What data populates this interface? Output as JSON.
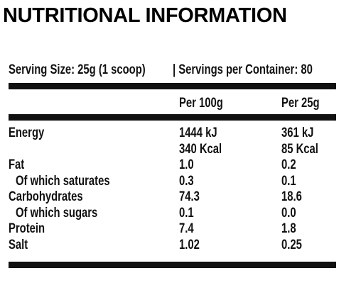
{
  "title": "NUTRITIONAL INFORMATION",
  "serving": {
    "size": "Serving Size: 25g (1 scoop)",
    "servings": "| Servings per Container: 80"
  },
  "table": {
    "columns": [
      "Per 100g",
      "Per 25g"
    ],
    "rows": [
      {
        "label": "Energy",
        "cells": [
          [
            "1444 kJ",
            "340 Kcal"
          ],
          [
            "361 kJ",
            "85 Kcal"
          ]
        ]
      },
      {
        "label": "Fat",
        "cells": [
          [
            "1.0"
          ],
          [
            "0.2"
          ]
        ]
      },
      {
        "label": "Of which saturates",
        "indent": true,
        "cells": [
          [
            "0.3"
          ],
          [
            "0.1"
          ]
        ]
      },
      {
        "label": "Carbohydrates",
        "cells": [
          [
            "74.3"
          ],
          [
            "18.6"
          ]
        ]
      },
      {
        "label": "Of which sugars",
        "indent": true,
        "cells": [
          [
            "0.1"
          ],
          [
            "0.0"
          ]
        ]
      },
      {
        "label": "Protein",
        "cells": [
          [
            "7.4"
          ],
          [
            "1.8"
          ]
        ]
      },
      {
        "label": "Salt",
        "cells": [
          [
            "1.02"
          ],
          [
            "0.25"
          ]
        ]
      }
    ]
  }
}
